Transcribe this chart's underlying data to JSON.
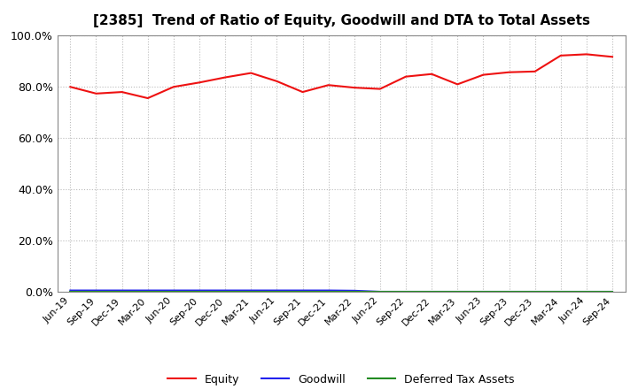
{
  "title": "[2385]  Trend of Ratio of Equity, Goodwill and DTA to Total Assets",
  "x_labels": [
    "Jun-19",
    "Sep-19",
    "Dec-19",
    "Mar-20",
    "Jun-20",
    "Sep-20",
    "Dec-20",
    "Mar-21",
    "Jun-21",
    "Sep-21",
    "Dec-21",
    "Mar-22",
    "Jun-22",
    "Sep-22",
    "Dec-22",
    "Mar-23",
    "Jun-23",
    "Sep-23",
    "Dec-23",
    "Mar-24",
    "Jun-24",
    "Sep-24"
  ],
  "equity": [
    79.8,
    77.2,
    77.8,
    75.4,
    79.8,
    81.5,
    83.5,
    85.2,
    82.0,
    77.8,
    80.5,
    79.5,
    79.0,
    83.8,
    84.8,
    80.8,
    84.5,
    85.5,
    85.8,
    92.0,
    92.5,
    91.5
  ],
  "goodwill": [
    0.5,
    0.5,
    0.5,
    0.5,
    0.5,
    0.5,
    0.5,
    0.5,
    0.5,
    0.5,
    0.5,
    0.4,
    0.0,
    0.0,
    0.0,
    0.0,
    0.0,
    0.0,
    0.0,
    0.0,
    0.0,
    0.0
  ],
  "dta": [
    0.1,
    0.1,
    0.1,
    0.1,
    0.1,
    0.1,
    0.1,
    0.1,
    0.1,
    0.1,
    0.1,
    0.1,
    0.1,
    0.1,
    0.1,
    0.1,
    0.1,
    0.1,
    0.1,
    0.1,
    0.1,
    0.1
  ],
  "equity_color": "#EE1111",
  "goodwill_color": "#2222EE",
  "dta_color": "#228B22",
  "ylim": [
    0,
    100
  ],
  "yticks": [
    0,
    20,
    40,
    60,
    80,
    100
  ],
  "background_color": "#FFFFFF",
  "plot_bg_color": "#FFFFFF",
  "grid_color": "#BBBBBB",
  "title_fontsize": 11,
  "tick_fontsize": 8,
  "legend_labels": [
    "Equity",
    "Goodwill",
    "Deferred Tax Assets"
  ]
}
